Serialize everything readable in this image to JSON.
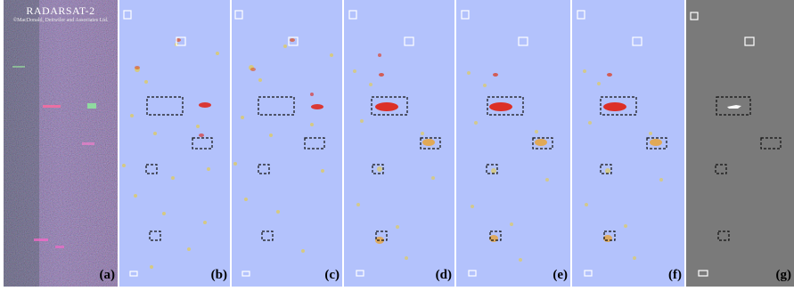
{
  "satellite": {
    "title": "RADARSAT-2",
    "copyright": "©MacDonald, Dettwiler and Associates Ltd."
  },
  "panels": [
    {
      "label": "(a)",
      "type": "sar-image"
    },
    {
      "label": "(b)",
      "type": "detection-map"
    },
    {
      "label": "(c)",
      "type": "detection-map"
    },
    {
      "label": "(d)",
      "type": "detection-map"
    },
    {
      "label": "(e)",
      "type": "detection-map"
    },
    {
      "label": "(f)",
      "type": "detection-map"
    },
    {
      "label": "(g)",
      "type": "ground-truth"
    }
  ],
  "colors": {
    "map_background": "#b3c2fc",
    "ground_truth_background": "#7a7a7a",
    "target_high": "#e02010",
    "target_low": "#f2d020",
    "box_stroke": "#111111",
    "marker_stroke": "#ffffff"
  }
}
